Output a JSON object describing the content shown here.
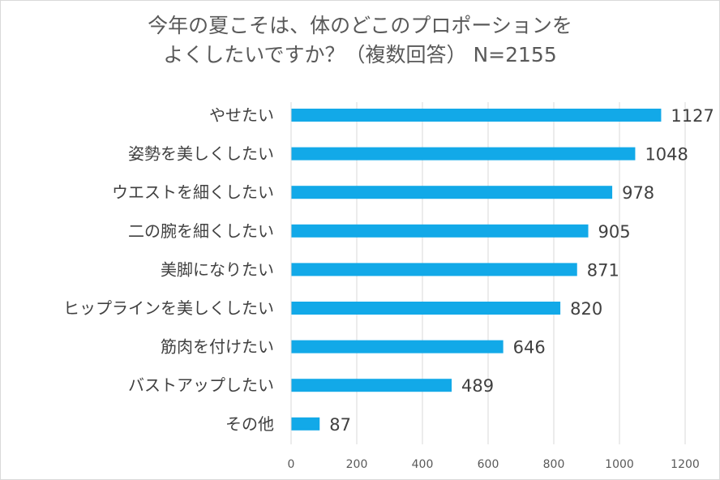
{
  "chart_data": {
    "type": "bar",
    "orientation": "horizontal",
    "title_lines": [
      "今年の夏こそは、体のどこのプロポーションを",
      "よくしたいですか？（複数回答） N=2155"
    ],
    "categories": [
      "やせたい",
      "姿勢を美しくしたい",
      "ウエストを細くしたい",
      "二の腕を細くしたい",
      "美脚になりたい",
      "ヒップラインを美しくしたい",
      "筋肉を付けたい",
      "バストアップしたい",
      "その他"
    ],
    "values": [
      1127,
      1048,
      978,
      905,
      871,
      820,
      646,
      489,
      87
    ],
    "xlim": [
      0,
      1200
    ],
    "x_ticks": [
      "0",
      "200",
      "400",
      "600",
      "800",
      "1000",
      "1200"
    ],
    "grid": "vertical",
    "bar_color": "#12a9e8",
    "data_labels": true
  }
}
